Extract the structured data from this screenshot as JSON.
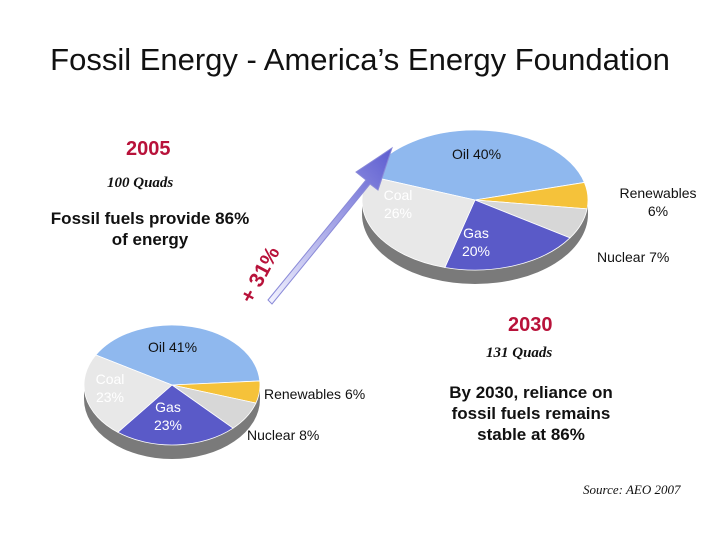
{
  "title": "Fossil Energy - America’s Energy Foundation",
  "source": "Source:  AEO 2007",
  "colors": {
    "oil": "#8fb8ee",
    "coal": "#e8e8e8",
    "gas": "#5a5ac8",
    "renewables": "#f5c23a",
    "nuclear": "#d7d7d7",
    "accent": "#b8123a",
    "arrow": "#6a6ad8"
  },
  "growth_label": "+ 31%",
  "chart_data": [
    {
      "type": "pie",
      "title": "2005",
      "subtitle": "100 Quads",
      "note": "Fossil fuels provide 86% of energy",
      "slices": [
        {
          "name": "Oil",
          "label": "Oil 40%",
          "value": 40
        },
        {
          "name": "Renewables",
          "label": "Renewables 6%",
          "value": 6
        },
        {
          "name": "Nuclear",
          "label": "Nuclear 7%",
          "value": 7
        },
        {
          "name": "Gas",
          "label": "Gas 20%",
          "value": 20
        },
        {
          "name": "Coal",
          "label": "Coal 26%",
          "value": 26
        }
      ]
    },
    {
      "type": "pie",
      "title": "2030",
      "subtitle": "131 Quads",
      "note": "By 2030, reliance on fossil fuels remains stable at 86%",
      "slices": [
        {
          "name": "Oil",
          "label": "Oil 41%",
          "value": 41
        },
        {
          "name": "Renewables",
          "label": "Renewables 6%",
          "value": 6
        },
        {
          "name": "Nuclear",
          "label": "Nuclear 8%",
          "value": 8
        },
        {
          "name": "Gas",
          "label": "Gas 23%",
          "value": 23
        },
        {
          "name": "Coal",
          "label": "Coal 23%",
          "value": 23
        }
      ]
    }
  ]
}
